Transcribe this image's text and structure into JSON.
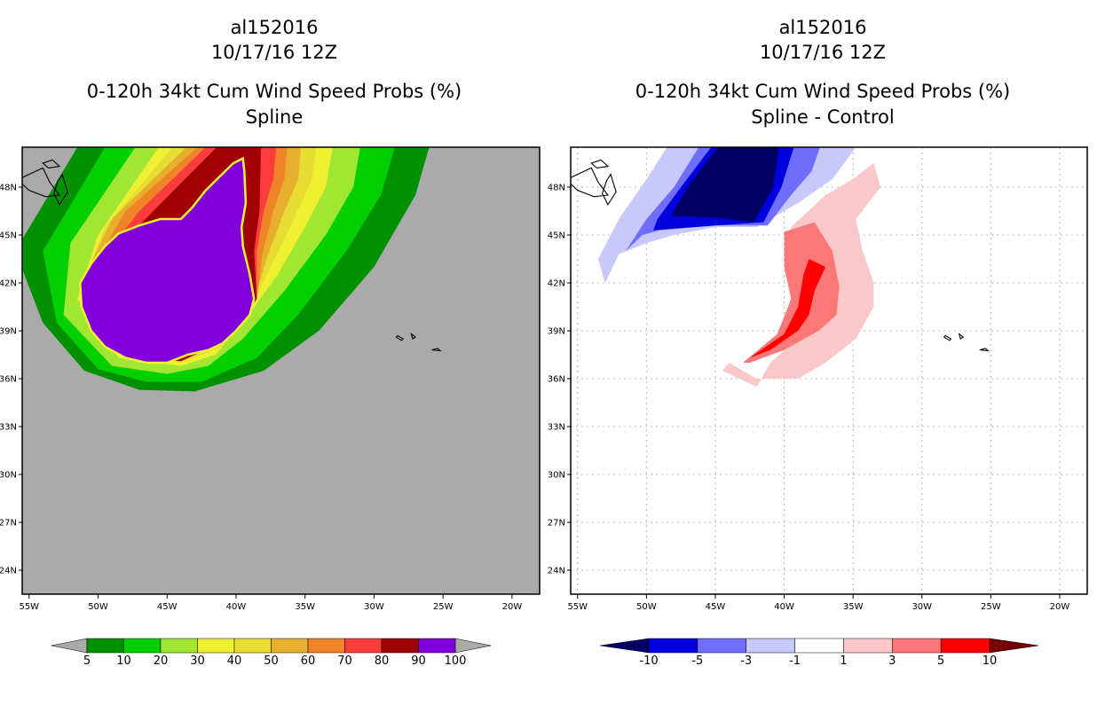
{
  "chart_data": [
    {
      "type": "heatmap",
      "title": [
        "al152016",
        "10/17/16 12Z",
        "0-120h 34kt Cum Wind Speed Probs (%)",
        "Spline"
      ],
      "xlabel": "",
      "ylabel": "",
      "xlim": [
        -55.5,
        -18
      ],
      "ylim": [
        22.5,
        50.5
      ],
      "x_ticks": [
        -55,
        -50,
        -45,
        -40,
        -35,
        -30,
        -25,
        -20
      ],
      "x_tick_labels": [
        "55W",
        "50W",
        "45W",
        "40W",
        "35W",
        "30W",
        "25W",
        "20W"
      ],
      "y_ticks": [
        24,
        27,
        30,
        33,
        36,
        39,
        42,
        45,
        48
      ],
      "y_tick_labels": [
        "24N",
        "27N",
        "30N",
        "33N",
        "36N",
        "39N",
        "42N",
        "45N",
        "48N"
      ],
      "grid": false,
      "background": "#aaaaaa",
      "bands": [
        {
          "level": 5,
          "color": "#009000",
          "path": [
            [
              -51.5,
              50.5
            ],
            [
              -56,
              44
            ],
            [
              -54,
              39.5
            ],
            [
              -51,
              36.5
            ],
            [
              -47,
              35.3
            ],
            [
              -43,
              35.2
            ],
            [
              -38,
              36.5
            ],
            [
              -34,
              39
            ],
            [
              -30,
              43
            ],
            [
              -27,
              47.5
            ],
            [
              -26,
              50.5
            ]
          ]
        },
        {
          "level": 10,
          "color": "#00d000",
          "path": [
            [
              -49.5,
              50.5
            ],
            [
              -54,
              44
            ],
            [
              -53,
              39.5
            ],
            [
              -50,
              36.6
            ],
            [
              -46.5,
              35.8
            ],
            [
              -42.5,
              35.8
            ],
            [
              -38.5,
              37.3
            ],
            [
              -35.5,
              40
            ],
            [
              -32,
              44
            ],
            [
              -29.5,
              47.5
            ],
            [
              -28.5,
              50.5
            ]
          ]
        },
        {
          "level": 20,
          "color": "#a0e632",
          "path": [
            [
              -47.3,
              50.5
            ],
            [
              -52,
              44.5
            ],
            [
              -52.5,
              40
            ],
            [
              -49,
              36.8
            ],
            [
              -45,
              36.3
            ],
            [
              -42,
              36.8
            ],
            [
              -39.5,
              38.5
            ],
            [
              -36.5,
              41.5
            ],
            [
              -33.5,
              45
            ],
            [
              -31.5,
              48
            ],
            [
              -31,
              50.5
            ]
          ]
        },
        {
          "level": 30,
          "color": "#f0f032",
          "path": [
            [
              -45.6,
              50.5
            ],
            [
              -50,
              45
            ],
            [
              -51.5,
              41
            ],
            [
              -48.5,
              37.3
            ],
            [
              -44,
              36.8
            ],
            [
              -41.5,
              37.5
            ],
            [
              -39.5,
              39.5
            ],
            [
              -37,
              42.5
            ],
            [
              -35,
              45.5
            ],
            [
              -33.5,
              48
            ],
            [
              -33,
              50.5
            ]
          ]
        },
        {
          "level": 40,
          "color": "#e6dc32",
          "path": [
            [
              -44.6,
              50.5
            ],
            [
              -49.5,
              45.5
            ],
            [
              -51.3,
              41.5
            ],
            [
              -48.3,
              37.4
            ],
            [
              -44,
              37
            ],
            [
              -41,
              38
            ],
            [
              -39.2,
              40
            ],
            [
              -37.5,
              43
            ],
            [
              -35.8,
              46
            ],
            [
              -34.5,
              48.5
            ],
            [
              -34.2,
              50.5
            ]
          ]
        },
        {
          "level": 50,
          "color": "#e6af2d",
          "path": [
            [
              -43.6,
              50.5
            ],
            [
              -49,
              46
            ],
            [
              -51.2,
              42
            ],
            [
              -48.2,
              37.4
            ],
            [
              -44,
              37.1
            ],
            [
              -40.8,
              38.3
            ],
            [
              -38.8,
              40.5
            ],
            [
              -37.8,
              43.5
            ],
            [
              -36.5,
              46.5
            ],
            [
              -35.5,
              48.5
            ],
            [
              -35.3,
              50.5
            ]
          ]
        },
        {
          "level": 60,
          "color": "#f08228",
          "path": [
            [
              -42.8,
              50.5
            ],
            [
              -48,
              46.5
            ],
            [
              -51.1,
              42
            ],
            [
              -48.2,
              37.4
            ],
            [
              -44,
              37.1
            ],
            [
              -40.5,
              38.5
            ],
            [
              -38.5,
              41
            ],
            [
              -38.1,
              43.8
            ],
            [
              -37.3,
              46.5
            ],
            [
              -36.5,
              48.5
            ],
            [
              -36.3,
              50.5
            ]
          ]
        },
        {
          "level": 70,
          "color": "#fa3c3c",
          "path": [
            [
              -42.2,
              50.5
            ],
            [
              -47,
              46.5
            ],
            [
              -51.1,
              42
            ],
            [
              -48.2,
              37.4
            ],
            [
              -44,
              37.1
            ],
            [
              -40.5,
              38.5
            ],
            [
              -38.5,
              41
            ],
            [
              -38.5,
              44
            ],
            [
              -38,
              46.5
            ],
            [
              -37.3,
              48.5
            ],
            [
              -37.1,
              50.5
            ]
          ]
        },
        {
          "level": 80,
          "color": "#a00000",
          "path": [
            [
              -41.4,
              50.5
            ],
            [
              -46,
              46.5
            ],
            [
              -51.1,
              42
            ],
            [
              -48.2,
              37.4
            ],
            [
              -44,
              37.1
            ],
            [
              -40.5,
              38.5
            ],
            [
              -38.5,
              41
            ],
            [
              -38.7,
              44
            ],
            [
              -38.3,
              46.5
            ],
            [
              -38.2,
              50.5
            ]
          ]
        },
        {
          "level": 100,
          "color": "#8200dc",
          "path": [
            [
              -51.3,
              42
            ],
            [
              -50.5,
              43.2
            ],
            [
              -49.5,
              44.3
            ],
            [
              -48.5,
              45.1
            ],
            [
              -47,
              45.6
            ],
            [
              -45.5,
              46
            ],
            [
              -44,
              46
            ],
            [
              -43.2,
              46.7
            ],
            [
              -42.2,
              47.8
            ],
            [
              -40.2,
              49.5
            ],
            [
              -39.5,
              49.8
            ],
            [
              -39.4,
              49
            ],
            [
              -39.3,
              47
            ],
            [
              -39.6,
              45.5
            ],
            [
              -39.5,
              44.3
            ],
            [
              -39,
              42.5
            ],
            [
              -38.7,
              41
            ],
            [
              -39,
              40
            ],
            [
              -40,
              39
            ],
            [
              -41,
              38.2
            ],
            [
              -42,
              37.8
            ],
            [
              -43.5,
              37.5
            ],
            [
              -45,
              37
            ],
            [
              -46.5,
              37
            ],
            [
              -48,
              37.3
            ],
            [
              -49.5,
              38
            ],
            [
              -50.5,
              39
            ],
            [
              -51.2,
              40.5
            ]
          ]
        }
      ]
    },
    {
      "type": "heatmap",
      "title": [
        "al152016",
        "10/17/16 12Z",
        "0-120h 34kt Cum Wind Speed Probs (%)",
        "Spline - Control"
      ],
      "xlabel": "",
      "ylabel": "",
      "xlim": [
        -55.5,
        -18
      ],
      "ylim": [
        22.5,
        50.5
      ],
      "x_ticks": [
        -55,
        -50,
        -45,
        -40,
        -35,
        -30,
        -25,
        -20
      ],
      "x_tick_labels": [
        "55W",
        "50W",
        "45W",
        "40W",
        "35W",
        "30W",
        "25W",
        "20W"
      ],
      "y_ticks": [
        24,
        27,
        30,
        33,
        36,
        39,
        42,
        45,
        48
      ],
      "y_tick_labels": [
        "24N",
        "27N",
        "30N",
        "33N",
        "36N",
        "39N",
        "42N",
        "45N",
        "48N"
      ],
      "grid": true,
      "background": "#ffffff",
      "bands": [
        {
          "level": -3,
          "color": "#c8c8fa",
          "path": [
            [
              -48.5,
              50.5
            ],
            [
              -50,
              48.5
            ],
            [
              -52,
              46
            ],
            [
              -53.5,
              43.5
            ],
            [
              -53,
              42
            ],
            [
              -52,
              43.8
            ],
            [
              -50,
              44.5
            ],
            [
              -48,
              45
            ],
            [
              -45,
              45.5
            ],
            [
              -42,
              45.5
            ],
            [
              -39,
              47
            ],
            [
              -36.5,
              48.5
            ],
            [
              -34.8,
              50.5
            ]
          ]
        },
        {
          "level": -5,
          "color": "#6e6efa",
          "path": [
            [
              -46.2,
              50.5
            ],
            [
              -48,
              48
            ],
            [
              -50,
              46
            ],
            [
              -51.5,
              44
            ],
            [
              -50.3,
              45
            ],
            [
              -49,
              45.3
            ],
            [
              -45,
              45.6
            ],
            [
              -41.2,
              45.6
            ],
            [
              -39.5,
              47.5
            ],
            [
              -38,
              49
            ],
            [
              -37.4,
              50.5
            ]
          ]
        },
        {
          "level": -10,
          "color": "#0000dc",
          "path": [
            [
              -45.3,
              50.5
            ],
            [
              -47.5,
              48
            ],
            [
              -49.2,
              46
            ],
            [
              -49.5,
              45.3
            ],
            [
              -45,
              45.6
            ],
            [
              -41.5,
              45.8
            ],
            [
              -40.2,
              48
            ],
            [
              -39.3,
              50.5
            ]
          ]
        },
        {
          "level": -99,
          "color": "#000064",
          "path": [
            [
              -44.8,
              50.5
            ],
            [
              -47,
              48
            ],
            [
              -48.2,
              46.2
            ],
            [
              -45,
              46.1
            ],
            [
              -42.2,
              45.8
            ],
            [
              -40.8,
              48
            ],
            [
              -40.4,
              50.5
            ]
          ]
        },
        {
          "level": 1,
          "color": "#fac8c8",
          "path": [
            [
              -41,
              37
            ],
            [
              -39,
              38.5
            ],
            [
              -38.5,
              40
            ],
            [
              -39.5,
              42
            ],
            [
              -40,
              44
            ],
            [
              -39.5,
              45.5
            ],
            [
              -37,
              47.5
            ],
            [
              -35,
              48.5
            ],
            [
              -33.5,
              49.5
            ],
            [
              -33,
              48
            ],
            [
              -34.8,
              46
            ],
            [
              -34.3,
              44
            ],
            [
              -33.5,
              42
            ],
            [
              -33.5,
              40.5
            ],
            [
              -34.8,
              38.5
            ],
            [
              -37,
              37
            ],
            [
              -39,
              36
            ],
            [
              -42,
              36
            ],
            [
              -44,
              37
            ],
            [
              -44.5,
              36.5
            ],
            [
              -42,
              35.5
            ]
          ]
        },
        {
          "level": 3,
          "color": "#fa7878",
          "path": [
            [
              -43,
              37
            ],
            [
              -40.5,
              38.8
            ],
            [
              -39.5,
              41
            ],
            [
              -40,
              43
            ],
            [
              -40,
              45.2
            ],
            [
              -37.8,
              45.8
            ],
            [
              -36.5,
              44
            ],
            [
              -36,
              41.8
            ],
            [
              -36.2,
              40
            ],
            [
              -37.5,
              39
            ],
            [
              -40,
              37.8
            ],
            [
              -42.5,
              37
            ]
          ]
        },
        {
          "level": 5,
          "color": "#ff0000",
          "path": [
            [
              -42.5,
              37.3
            ],
            [
              -40,
              38.8
            ],
            [
              -39,
              40.5
            ],
            [
              -38.6,
              42.5
            ],
            [
              -38.2,
              43.5
            ],
            [
              -37,
              43
            ],
            [
              -37.8,
              41.5
            ],
            [
              -38.2,
              40
            ],
            [
              -39,
              39
            ],
            [
              -41,
              37.8
            ]
          ]
        }
      ]
    }
  ],
  "colorbars": [
    {
      "labels": [
        "5",
        "10",
        "20",
        "30",
        "40",
        "50",
        "60",
        "70",
        "80",
        "90",
        "100"
      ],
      "colors": [
        "#009000",
        "#00d000",
        "#a0e632",
        "#f0f032",
        "#e6dc32",
        "#e6af2d",
        "#f08228",
        "#fa3c3c",
        "#a00000",
        "#8200dc"
      ],
      "under_color": "#aaaaaa",
      "over_color": "#aaaaaa"
    },
    {
      "labels": [
        "-10",
        "-5",
        "-3",
        "-1",
        "1",
        "3",
        "5",
        "10"
      ],
      "colors": [
        "#0000dc",
        "#6e6efa",
        "#c8c8fa",
        "#ffffff",
        "#fac8c8",
        "#fa7878",
        "#ff0000"
      ],
      "under_color": "#000064",
      "over_color": "#780000"
    }
  ]
}
